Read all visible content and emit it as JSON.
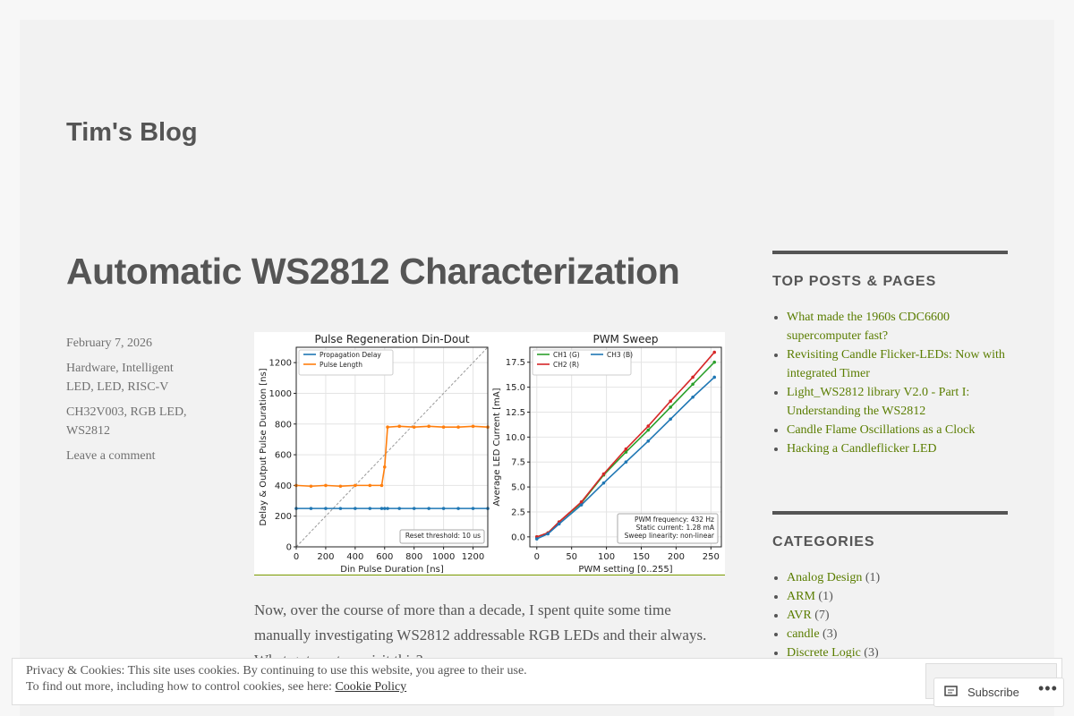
{
  "header": {
    "site_title": "Tim's Blog"
  },
  "post": {
    "title": "Automatic WS2812 Characterization",
    "date": "February 7, 2026",
    "categories": "Hardware, Intelligent LED, LED, RISC-V",
    "tags": "CH32V003, RGB LED, WS2812",
    "comment_link": "Leave a comment",
    "paragraph": "Now, over the course of more than a decade, I spent quite some time manually investigating WS2812 addressable RGB LEDs and their always. What got me to revisit this?"
  },
  "chart_data": [
    {
      "type": "line",
      "title": "Pulse Regeneration Din-Dout",
      "x_label": "Din Pulse Duration [ns]",
      "y_label": "Delay & Output Pulse Duration [ns]",
      "x": [
        0,
        100,
        200,
        300,
        400,
        500,
        580,
        600,
        620,
        700,
        800,
        900,
        1000,
        1100,
        1200,
        1300
      ],
      "series": [
        {
          "name": "Propagation Delay",
          "color": "#1f77b4",
          "values": [
            250,
            250,
            250,
            250,
            250,
            250,
            250,
            250,
            250,
            250,
            250,
            250,
            250,
            250,
            250,
            250
          ]
        },
        {
          "name": "Pulse Length",
          "color": "#ff7f0e",
          "values": [
            400,
            395,
            400,
            395,
            400,
            400,
            400,
            520,
            780,
            785,
            780,
            785,
            780,
            780,
            785,
            780
          ]
        }
      ],
      "xlim": [
        0,
        1300
      ],
      "xticks": [
        0,
        200,
        400,
        600,
        800,
        1000,
        1200
      ],
      "ylim": [
        0,
        1300
      ],
      "yticks": [
        0,
        200,
        400,
        600,
        800,
        1000,
        1200
      ],
      "grid": true,
      "legend": "upper left",
      "annotations": [
        "Reset threshold: 10 us"
      ]
    },
    {
      "type": "line",
      "title": "PWM Sweep",
      "x_label": "PWM setting [0..255]",
      "y_label": "Average LED Current [mA]",
      "x": [
        0,
        16,
        32,
        64,
        96,
        128,
        160,
        192,
        224,
        255
      ],
      "series": [
        {
          "name": "CH1 (G)",
          "color": "#2ca02c",
          "values": [
            0,
            0.4,
            1.5,
            3.4,
            6.2,
            8.5,
            10.7,
            13,
            15.3,
            17.5
          ]
        },
        {
          "name": "CH2 (R)",
          "color": "#d62728",
          "values": [
            0,
            0.4,
            1.5,
            3.5,
            6.3,
            8.8,
            11.1,
            13.6,
            16,
            18.5
          ]
        },
        {
          "name": "CH3 (B)",
          "color": "#1f77b4",
          "values": [
            -0.2,
            0.3,
            1.3,
            3.2,
            5.4,
            7.5,
            9.6,
            11.8,
            14,
            16
          ]
        }
      ],
      "xlim": [
        -10,
        265
      ],
      "xticks": [
        0,
        50,
        100,
        150,
        200,
        250
      ],
      "ylim": [
        -1,
        19
      ],
      "yticks": [
        {
          "value": 0,
          "label": "0.0"
        },
        2.5,
        {
          "value": 5,
          "label": "5.0"
        },
        7.5,
        {
          "value": 10,
          "label": "10.0"
        },
        12.5,
        {
          "value": 15,
          "label": "15.0"
        },
        17.5
      ],
      "grid": true,
      "legend": "upper left",
      "annotations": [
        "PWM frequency: 432 Hz",
        "Static current: 1.28 mA",
        "Sweep linearity: non-linear"
      ]
    }
  ],
  "sidebar": {
    "top_posts": {
      "heading": "TOP POSTS & PAGES",
      "items": [
        "What made the 1960s CDC6600 supercomputer fast?",
        "Revisiting Candle Flicker-LEDs: Now with integrated Timer",
        "Light_WS2812 library V2.0 - Part I: Understanding the WS2812",
        "Candle Flame Oscillations as a Clock",
        "Hacking a Candleflicker LED"
      ]
    },
    "categories": {
      "heading": "CATEGORIES",
      "items": [
        {
          "name": "Analog Design",
          "count": "(1)"
        },
        {
          "name": "ARM",
          "count": "(1)"
        },
        {
          "name": "AVR",
          "count": "(7)"
        },
        {
          "name": "candle",
          "count": "(3)"
        },
        {
          "name": "Discrete Logic",
          "count": "(3)"
        }
      ]
    }
  },
  "cookie_banner": {
    "line1": "Privacy & Cookies: This site uses cookies. By continuing to use this website, you agree to their use.",
    "line2": "To find out more, including how to control cookies, see here:",
    "link": "Cookie Policy"
  },
  "subscribe": {
    "label": "Subscribe"
  }
}
